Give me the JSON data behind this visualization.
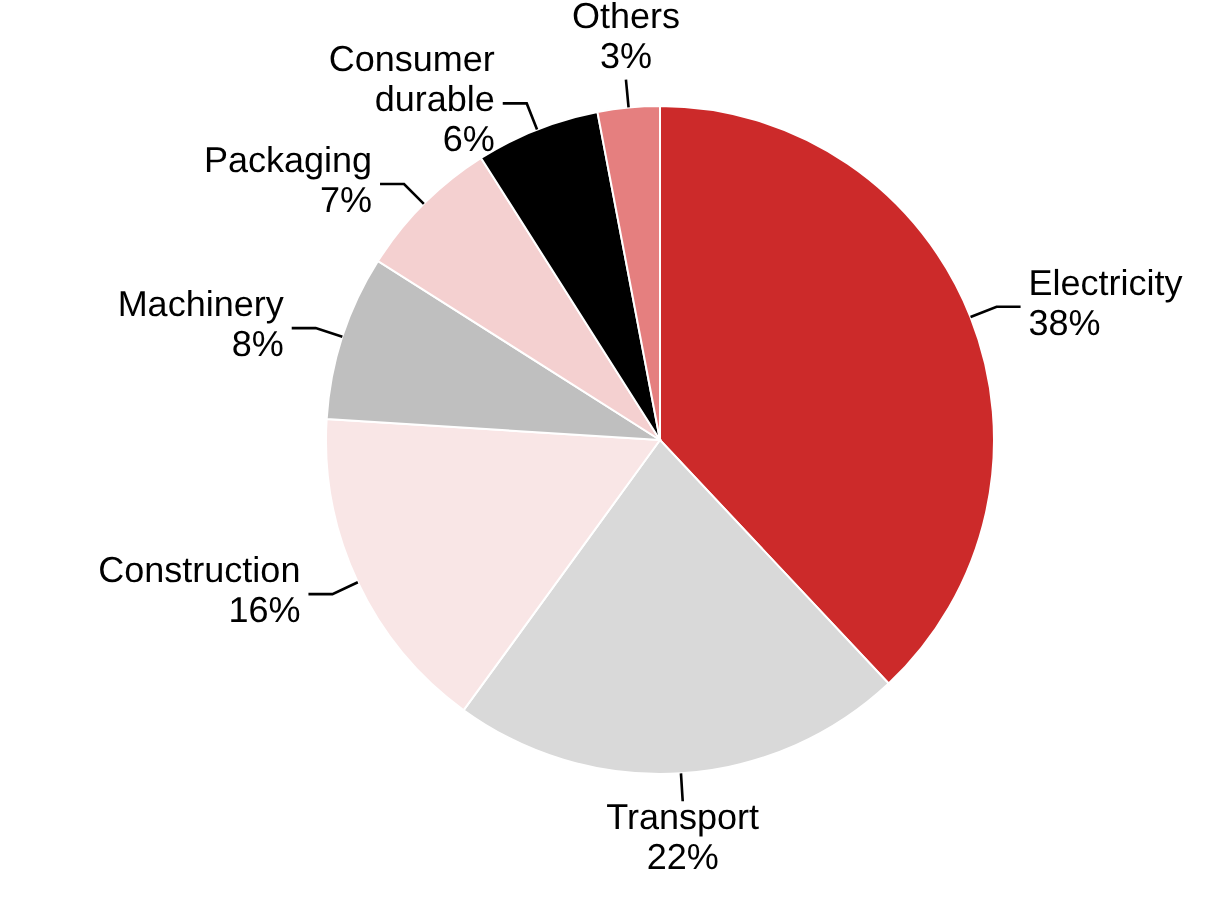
{
  "chart_data": {
    "type": "pie",
    "categories": [
      "Electricity",
      "Transport",
      "Construction",
      "Machinery",
      "Packaging",
      "Consumer durable",
      "Others"
    ],
    "values": [
      38,
      22,
      16,
      8,
      7,
      6,
      3
    ],
    "value_labels": [
      "38%",
      "22%",
      "16%",
      "8%",
      "7%",
      "6%",
      "3%"
    ],
    "colors": [
      "#cc2a2a",
      "#d9d9d9",
      "#f9e6e6",
      "#bfbfbf",
      "#f4d0d0",
      "#000000",
      "#e57f7f"
    ],
    "legend": false
  }
}
